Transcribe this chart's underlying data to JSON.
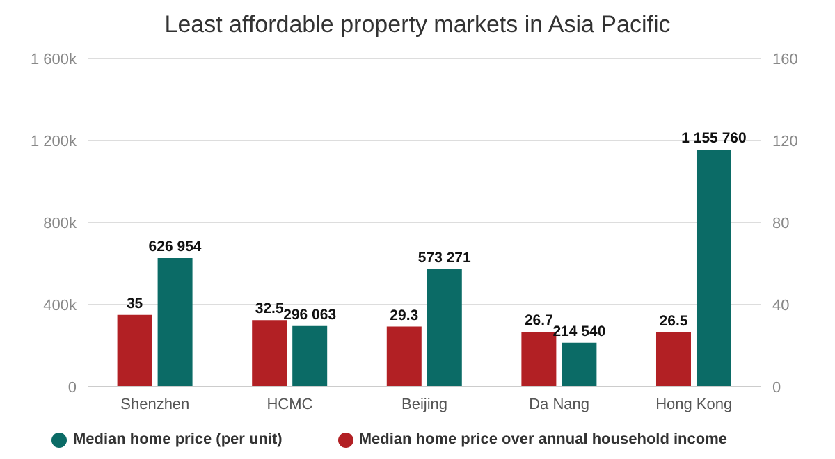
{
  "chart_data": {
    "type": "bar",
    "title": "Least affordable property markets in Asia Pacific",
    "categories": [
      "Shenzhen",
      "HCMC",
      "Beijing",
      "Da Nang",
      "Hong Kong"
    ],
    "series": [
      {
        "name": "Median home price over annual household income",
        "color": "#b22024",
        "values": [
          35,
          32.5,
          29.3,
          26.7,
          26.5
        ],
        "axis": "y2",
        "value_labels": [
          "35",
          "32.5",
          "29.3",
          "26.7",
          "26.5"
        ]
      },
      {
        "name": "Median home price (per unit)",
        "color": "#0b6b66",
        "values": [
          626954,
          296063,
          573271,
          214540,
          1155760
        ],
        "value_labels": [
          "626 954",
          "296 063",
          "573 271",
          "214 540",
          "1 155 760"
        ]
      }
    ],
    "ylim": [
      0,
      1600000
    ],
    "yticks": [
      {
        "value": 0,
        "label": "0"
      },
      {
        "value": 400000,
        "label": "400k"
      },
      {
        "value": 800000,
        "label": "800k"
      },
      {
        "value": 1200000,
        "label": "1 200k"
      },
      {
        "value": 1600000,
        "label": "1 600k"
      }
    ],
    "y2lim": [
      0,
      160
    ],
    "y2ticks": [
      0,
      40,
      80,
      120,
      160
    ],
    "grid": "y",
    "legend": "bottom"
  }
}
